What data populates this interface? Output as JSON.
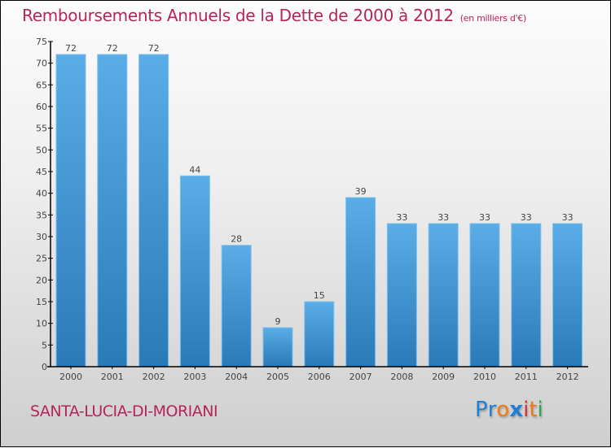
{
  "header": {
    "title": "Remboursements Annuels de la Dette de 2000 à 2012",
    "subtitle": "(en milliers d'€)"
  },
  "footer": {
    "city": "SANTA-LUCIA-DI-MORIANI",
    "logo": {
      "letters": [
        {
          "char": "P",
          "color": "#1f7fd6"
        },
        {
          "char": "r",
          "color": "#1f7fd6"
        },
        {
          "char": "o",
          "color": "#f07a10"
        },
        {
          "char": "x",
          "color": "#1f7fd6"
        },
        {
          "char": "i",
          "color": "#e03030"
        },
        {
          "char": "t",
          "color": "#f07a10"
        },
        {
          "char": "i",
          "color": "#2fa84a"
        }
      ]
    }
  },
  "colors": {
    "bar_top": "#5aade6",
    "bar_bottom": "#2a7ab8",
    "title": "#b5245a"
  },
  "chart_data": {
    "type": "bar",
    "title": "Remboursements Annuels de la Dette de 2000 à 2012",
    "subtitle": "(en milliers d'€)",
    "xlabel": "",
    "ylabel": "",
    "categories": [
      "2000",
      "2001",
      "2002",
      "2003",
      "2004",
      "2005",
      "2006",
      "2007",
      "2008",
      "2009",
      "2010",
      "2011",
      "2012"
    ],
    "values": [
      72,
      72,
      72,
      44,
      28,
      9,
      15,
      39,
      33,
      33,
      33,
      33,
      33
    ],
    "ylim": [
      0,
      75
    ],
    "yticks": [
      0,
      5,
      10,
      15,
      20,
      25,
      30,
      35,
      40,
      45,
      50,
      55,
      60,
      65,
      70,
      75
    ],
    "grid": false,
    "data_labels": true
  }
}
